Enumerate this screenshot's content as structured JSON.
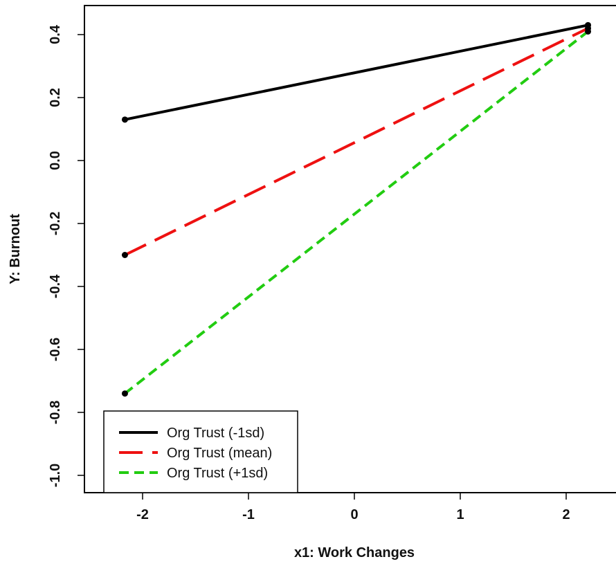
{
  "chart_data": {
    "type": "line",
    "xlabel": "x1: Work Changes",
    "ylabel": "Y: Burnout",
    "xlim": [
      -2.35,
      2.35
    ],
    "ylim": [
      -1.0,
      0.43
    ],
    "xticks": [
      -2,
      -1,
      0,
      1,
      2
    ],
    "xtick_labels": [
      "-2",
      "-1",
      "0",
      "1",
      "2"
    ],
    "yticks": [
      -1.0,
      -0.8,
      -0.6,
      -0.4,
      -0.2,
      0.0,
      0.2,
      0.4
    ],
    "ytick_labels": [
      "-1.0",
      "-0.8",
      "-0.6",
      "-0.4",
      "-0.2",
      "0.0",
      "0.2",
      "0.4"
    ],
    "x": [
      -2.35,
      2.35
    ],
    "series": [
      {
        "name": "Org Trust (-1sd)",
        "values": [
          0.13,
          0.43
        ],
        "color": "#000000",
        "dash": "solid"
      },
      {
        "name": "Org Trust (mean)",
        "values": [
          -0.3,
          0.42
        ],
        "color": "#ee1111",
        "dash": "long-dash"
      },
      {
        "name": "Org Trust (+1sd)",
        "values": [
          -0.74,
          0.41
        ],
        "color": "#22cc11",
        "dash": "short-dash"
      }
    ],
    "legend_position": "bottom-left",
    "grid": false
  }
}
